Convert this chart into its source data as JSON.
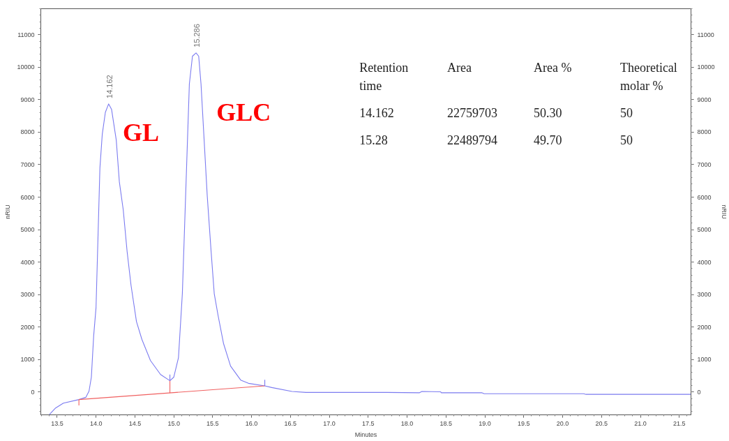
{
  "chart_data": {
    "type": "line",
    "xlabel": "Minutes",
    "ylabel": "nRIU",
    "y2label": "nRIU",
    "xlim": [
      13.29,
      21.65
    ],
    "ylim": [
      -700,
      11800
    ],
    "y2lim": [
      -700,
      11800
    ],
    "xticks": [
      13.5,
      {
        "value": 14,
        "label": "14.0"
      },
      14.5,
      {
        "value": 15,
        "label": "15.0"
      },
      15.5,
      {
        "value": 16,
        "label": "16.0"
      },
      16.5,
      {
        "value": 17,
        "label": "17.0"
      },
      17.5,
      {
        "value": 18,
        "label": "18.0"
      },
      18.5,
      {
        "value": 19,
        "label": "19.0"
      },
      19.5,
      {
        "value": 20,
        "label": "20.0"
      },
      20.5,
      {
        "value": 21,
        "label": "21.0"
      },
      21.5
    ],
    "yticks": [
      0,
      1000,
      2000,
      3000,
      4000,
      5000,
      6000,
      7000,
      8000,
      9000,
      10000,
      11000
    ],
    "y2ticks": [
      0,
      1000,
      2000,
      3000,
      4000,
      5000,
      6000,
      7000,
      8000,
      9000,
      10000,
      11000
    ],
    "grid": false,
    "marker": "none",
    "line_style": "solid",
    "series": [
      {
        "color": "#7b7bf0",
        "x": [
          13.4,
          13.48,
          13.58,
          13.78,
          13.87,
          13.91,
          13.94,
          13.97,
          14.0,
          14.03,
          14.05,
          14.08,
          14.12,
          14.162,
          14.2,
          14.26,
          14.3,
          14.35,
          14.4,
          14.45,
          14.52,
          14.59,
          14.7,
          14.83,
          14.95,
          15.0,
          15.06,
          15.11,
          15.14,
          15.17,
          15.2,
          15.24,
          15.286,
          15.32,
          15.35,
          15.39,
          15.43,
          15.48,
          15.52,
          15.57,
          15.64,
          15.73,
          15.86,
          15.96,
          16.17,
          16.26,
          16.52,
          16.7,
          17.1,
          17.74,
          18.16,
          18.19,
          18.43,
          18.44,
          18.96,
          18.99,
          20.27,
          20.3,
          21.65
        ],
        "values": [
          -690,
          -490,
          -340,
          -230,
          -160,
          30,
          460,
          1740,
          2600,
          5180,
          6900,
          7930,
          8610,
          8870,
          8700,
          7760,
          6470,
          5610,
          4320,
          3290,
          2170,
          1620,
          970,
          540,
          350,
          460,
          1060,
          3030,
          5180,
          7330,
          9480,
          10340,
          10440,
          10340,
          9480,
          7760,
          6040,
          4320,
          3030,
          2350,
          1490,
          800,
          370,
          270,
          190,
          140,
          20,
          -10,
          -10,
          -10,
          -20,
          20,
          10,
          -20,
          -20,
          -50,
          -50,
          -70,
          -70
        ]
      },
      {
        "color": "#f06060",
        "x": [
          13.78,
          16.17
        ],
        "values": [
          -230,
          190
        ]
      },
      {
        "color": "#f06060",
        "x": [
          14.95,
          14.95
        ],
        "values": [
          -30,
          350
        ]
      },
      {
        "color": "#7b7bf0",
        "x": [
          14.95,
          14.95
        ],
        "values": [
          350,
          540
        ]
      },
      {
        "color": "#f06060",
        "x": [
          13.78,
          13.78
        ],
        "values": [
          -230,
          -410
        ]
      },
      {
        "color": "#7b7bf0",
        "x": [
          16.17,
          16.17
        ],
        "values": [
          190,
          380
        ]
      }
    ],
    "annotations": [
      {
        "text": "14.162",
        "x": 14.162,
        "y": 8870
      },
      {
        "text": "15.286",
        "x": 15.286,
        "y": 10440
      },
      "GL",
      "GLC",
      "Retention\ntime",
      "Area",
      "Area %",
      "Theoretical\nmolar %",
      "14.162",
      "22759703",
      "50.30",
      "50",
      "15.28",
      "22489794",
      "49.70",
      "50"
    ]
  }
}
